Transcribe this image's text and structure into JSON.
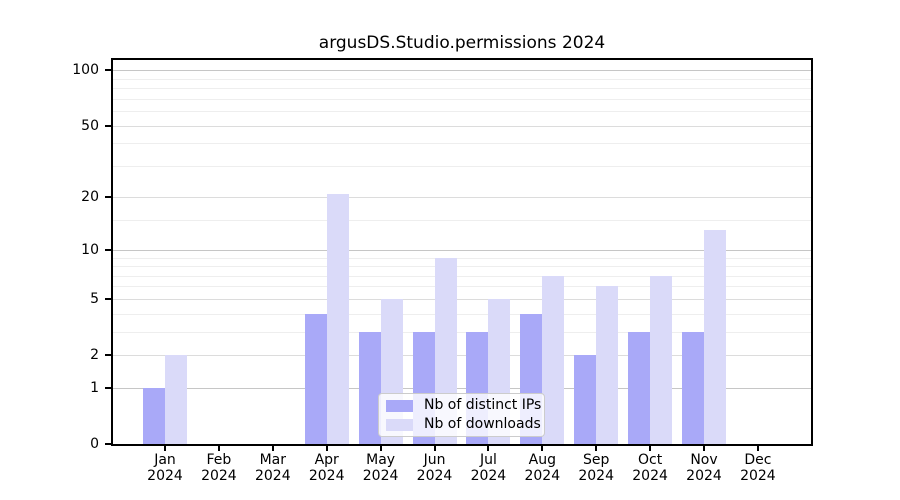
{
  "chart_data": {
    "type": "bar",
    "title": "argusDS.Studio.permissions 2024",
    "categories": [
      "Jan",
      "Feb",
      "Mar",
      "Apr",
      "May",
      "Jun",
      "Jul",
      "Aug",
      "Sep",
      "Oct",
      "Nov",
      "Dec"
    ],
    "year_label": "2024",
    "series": [
      {
        "name": "Nb of distinct IPs",
        "color": "#a9a9f8",
        "values": [
          1,
          0,
          0,
          4,
          3,
          3,
          3,
          4,
          2,
          3,
          3,
          0
        ]
      },
      {
        "name": "Nb of downloads",
        "color": "#dadaf9",
        "values": [
          2,
          0,
          0,
          21,
          5,
          9,
          5,
          7,
          6,
          7,
          13,
          0
        ]
      }
    ],
    "y_axis": {
      "scale": "log1p",
      "ticks": [
        0,
        1,
        2,
        5,
        10,
        20,
        50,
        100
      ],
      "major_gridlines": [
        1,
        10,
        100
      ],
      "minor_gridlines": [
        3,
        4,
        6,
        7,
        8,
        9,
        15,
        30,
        40,
        60,
        70,
        80,
        90
      ],
      "ylim": [
        0,
        113.6
      ]
    },
    "legend": {
      "position": "lower-center"
    },
    "grid": true,
    "colors": {
      "major_grid": "#c6c6c6",
      "sub_grid": "#dcdcdc",
      "minor_grid": "#eeeeee",
      "axis": "#000000",
      "background": "#ffffff"
    }
  }
}
